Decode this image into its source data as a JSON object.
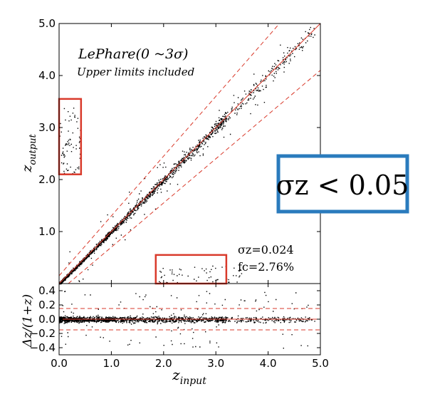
{
  "chart_data": [
    {
      "type": "scatter",
      "panel": "main",
      "title_main": "LePhare(0 ~3σ)",
      "title_sub": "Upper limits included",
      "xlabel": "",
      "ylabel_main": "z",
      "ylabel_sub": "output",
      "xlim": [
        0.0,
        5.0
      ],
      "ylim": [
        0.0,
        5.0
      ],
      "xticks": [
        "0.0",
        "1.0",
        "2.0",
        "3.0",
        "4.0",
        "5.0"
      ],
      "yticks": [
        "1.0",
        "2.0",
        "3.0",
        "4.0",
        "5.0"
      ],
      "stats": {
        "sigma_label": "σz=0.024",
        "fc_label": "fc=2.76%"
      },
      "reference_lines": {
        "one_to_one": "solid",
        "outlier_bounds_dashed": 0.15
      },
      "trend": {
        "x": [
          0.05,
          0.5,
          1.0,
          1.5,
          2.0,
          2.5,
          3.0,
          3.5,
          4.0,
          4.5,
          4.9
        ],
        "y": [
          0.05,
          0.5,
          1.0,
          1.5,
          2.0,
          2.5,
          3.0,
          3.5,
          4.0,
          4.5,
          4.9
        ]
      },
      "outlier_regions": [
        {
          "x": [
            0.0,
            0.42
          ],
          "y": [
            2.1,
            3.55
          ]
        },
        {
          "x": [
            1.85,
            3.2
          ],
          "y": [
            0.0,
            0.55
          ]
        }
      ]
    },
    {
      "type": "scatter",
      "panel": "residual",
      "xlabel_main": "z",
      "xlabel_sub": "input",
      "ylabel": "Δz/(1+z)",
      "xlim": [
        0.0,
        5.0
      ],
      "ylim": [
        -0.5,
        0.5
      ],
      "xticks": [
        "0.0",
        "1.0",
        "2.0",
        "3.0",
        "4.0",
        "5.0"
      ],
      "yticks": [
        "0.4",
        "0.2",
        "0.0",
        "−0.2",
        "−0.4"
      ],
      "dashed_levels": [
        0.15,
        0.0,
        -0.15
      ]
    }
  ],
  "annotation": {
    "text": "σz < 0.05",
    "border_color": "#2a7bbd"
  },
  "colors": {
    "points": "#000000",
    "reference_lines": "#d93a2b",
    "regions": "#d93a2b"
  }
}
